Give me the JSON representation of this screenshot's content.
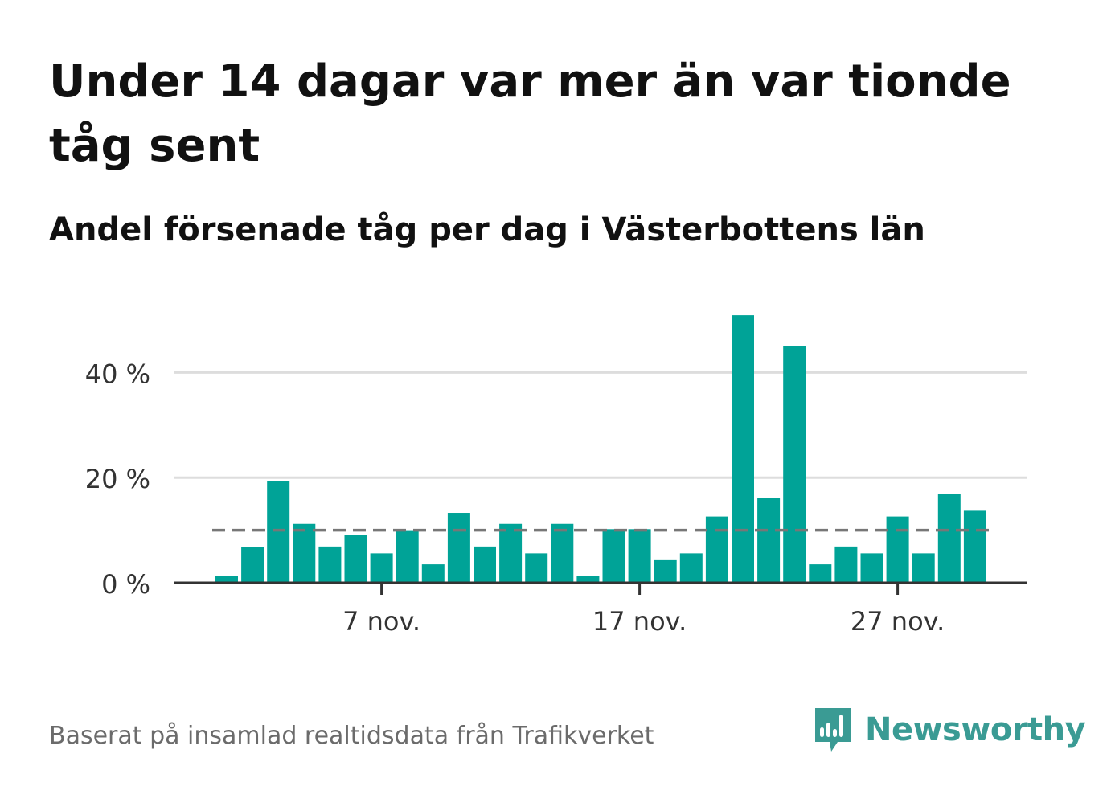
{
  "title": "Under 14 dagar var mer än var tionde tåg sent",
  "subtitle": "Andel försenade tåg per dag i Västerbottens län",
  "footer": "Baserat på insamlad realtidsdata från Trafikverket",
  "brand": {
    "name": "Newsworthy",
    "icon": "bar-chart-speech-bubble-icon"
  },
  "colors": {
    "bar": "#00a397",
    "reference_line": "#777777",
    "grid": "#dddddd",
    "axis": "#333333",
    "brand": "#3a9b94"
  },
  "chart_data": {
    "type": "bar",
    "x_unit": "day",
    "categories": [
      "1 nov.",
      "2 nov.",
      "3 nov.",
      "4 nov.",
      "5 nov.",
      "6 nov.",
      "7 nov.",
      "8 nov.",
      "9 nov.",
      "10 nov.",
      "11 nov.",
      "12 nov.",
      "13 nov.",
      "14 nov.",
      "15 nov.",
      "16 nov.",
      "17 nov.",
      "18 nov.",
      "19 nov.",
      "20 nov.",
      "21 nov.",
      "22 nov.",
      "23 nov.",
      "24 nov.",
      "25 nov.",
      "26 nov.",
      "27 nov.",
      "28 nov.",
      "29 nov.",
      "30 nov."
    ],
    "values": [
      1.3,
      6.8,
      19.4,
      11.2,
      6.9,
      9.1,
      5.6,
      10.0,
      3.5,
      13.3,
      6.9,
      11.2,
      5.6,
      11.2,
      1.3,
      10.2,
      10.2,
      4.3,
      5.6,
      12.6,
      50.9,
      16.1,
      45.0,
      3.5,
      6.9,
      5.6,
      12.6,
      5.6,
      16.9,
      13.7
    ],
    "reference_line": 10,
    "ylim": [
      0,
      52
    ],
    "yticks": [
      0,
      20,
      40
    ],
    "ytick_labels": [
      "0 %",
      "20 %",
      "40 %"
    ],
    "xtick_labels": [
      {
        "category": "7 nov.",
        "label": "7 nov."
      },
      {
        "category": "17 nov.",
        "label": "17 nov."
      },
      {
        "category": "27 nov.",
        "label": "27 nov."
      }
    ],
    "grid": true,
    "legend": "none"
  }
}
